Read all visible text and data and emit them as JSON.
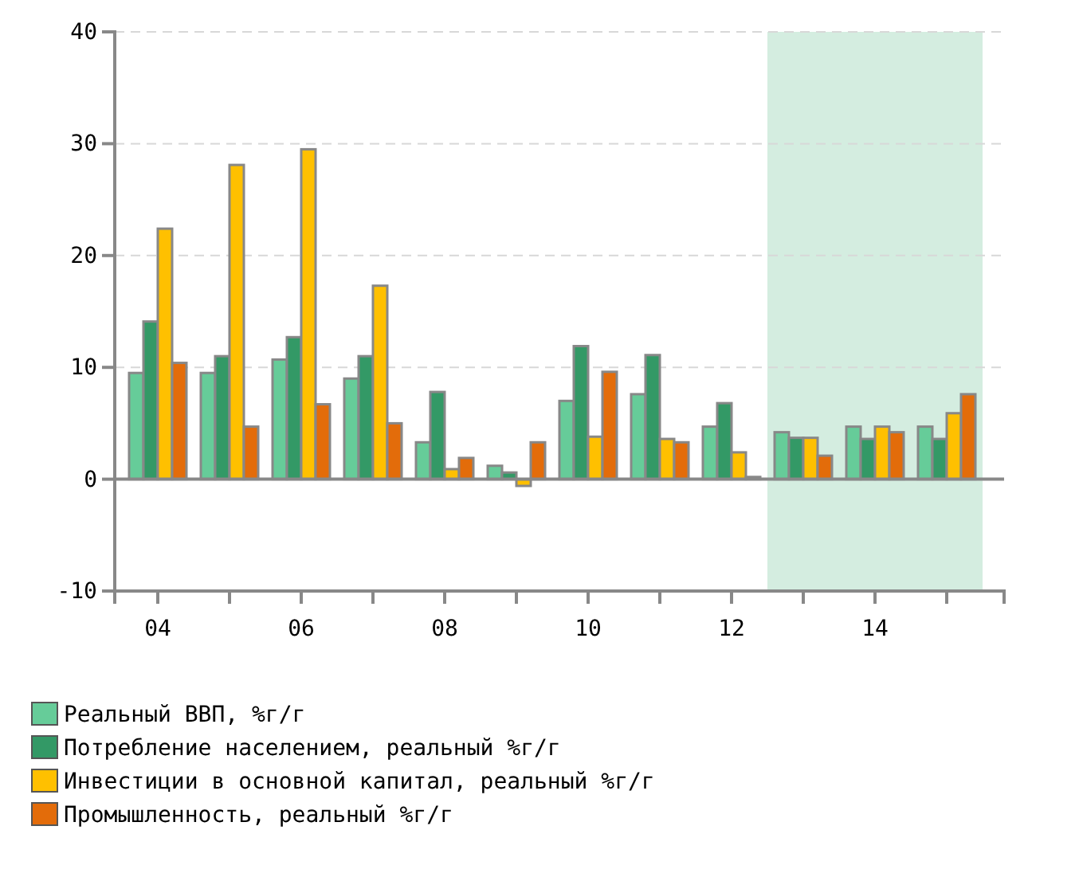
{
  "chart_data": {
    "type": "bar",
    "x": [
      2004,
      2005,
      2006,
      2007,
      2008,
      2009,
      2010,
      2011,
      2012,
      2013,
      2014,
      2015
    ],
    "xlim": [
      2003.4,
      2015.8
    ],
    "xticks": [
      {
        "value": 2004,
        "label": "04"
      },
      {
        "value": 2005,
        "label": null
      },
      {
        "value": 2006,
        "label": "06"
      },
      {
        "value": 2007,
        "label": null
      },
      {
        "value": 2008,
        "label": "08"
      },
      {
        "value": 2009,
        "label": null
      },
      {
        "value": 2010,
        "label": "10"
      },
      {
        "value": 2011,
        "label": null
      },
      {
        "value": 2012,
        "label": "12"
      },
      {
        "value": 2013,
        "label": null
      },
      {
        "value": 2014,
        "label": "14"
      },
      {
        "value": 2015,
        "label": null
      }
    ],
    "ylim": [
      -10,
      40
    ],
    "yticks": [
      -10,
      0,
      10,
      20,
      30,
      40
    ],
    "grid": "y",
    "legend": "bottom",
    "bands": [
      {
        "axis": "x",
        "from": 2012.5,
        "to": 2015.5,
        "color": "#d4ede0"
      }
    ],
    "series": [
      {
        "name": "Реальный ВВП, %г/г",
        "color": "#66cc99",
        "values": [
          9.5,
          9.5,
          10.7,
          9.0,
          3.3,
          1.2,
          7.0,
          7.6,
          4.7,
          4.2,
          4.7,
          4.7
        ]
      },
      {
        "name": "Потребление населением, реальный %г/г",
        "color": "#339966",
        "values": [
          14.1,
          11.0,
          12.7,
          11.0,
          7.8,
          0.6,
          11.9,
          11.1,
          6.8,
          3.7,
          3.6,
          3.6
        ]
      },
      {
        "name": "Инвестиции в основной капитал, реальный %г/г",
        "color": "#ffc000",
        "values": [
          22.4,
          28.1,
          29.5,
          17.3,
          0.9,
          -0.6,
          3.8,
          3.6,
          2.4,
          3.7,
          4.7,
          5.9
        ]
      },
      {
        "name": "Промышленность, реальный %г/г",
        "color": "#e36c0a",
        "values": [
          10.4,
          4.7,
          6.7,
          5.0,
          1.9,
          3.3,
          9.6,
          3.3,
          0.2,
          2.1,
          4.2,
          7.6
        ]
      }
    ]
  }
}
